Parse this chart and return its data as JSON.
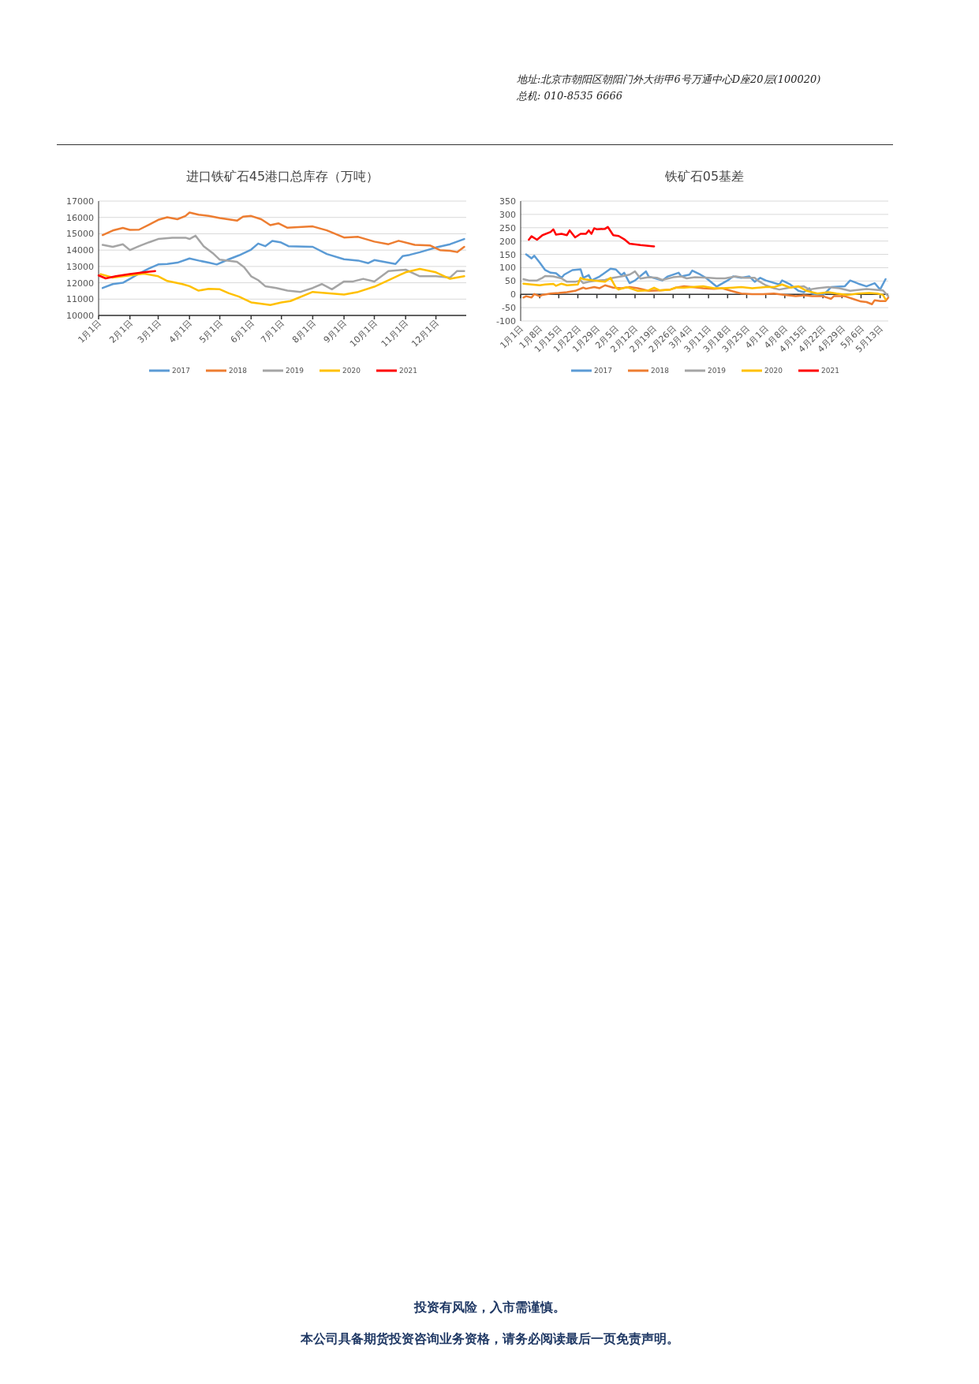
{
  "chart_data": [
    {
      "type": "line",
      "title": "进口铁矿石45港口总库存（万吨）",
      "xlim": [
        "--01-01",
        "--12-31"
      ],
      "xticks": [
        {
          "value": "--01-01",
          "label": "1月1日"
        },
        {
          "value": "--02-01",
          "label": "2月1日"
        },
        {
          "value": "--03-01",
          "label": "3月1日"
        },
        {
          "value": "--04-01",
          "label": "4月1日"
        },
        {
          "value": "--05-01",
          "label": "5月1日"
        },
        {
          "value": "--06-01",
          "label": "6月1日"
        },
        {
          "value": "--07-01",
          "label": "7月1日"
        },
        {
          "value": "--08-01",
          "label": "8月1日"
        },
        {
          "value": "--09-01",
          "label": "9月1日"
        },
        {
          "value": "--10-01",
          "label": "10月1日"
        },
        {
          "value": "--11-01",
          "label": "11月1日"
        },
        {
          "value": "--12-01",
          "label": "12月1日"
        }
      ],
      "ylim": [
        10000,
        17000
      ],
      "yticks": [
        10000,
        11000,
        12000,
        13000,
        14000,
        15000,
        16000,
        17000
      ],
      "grid": "y",
      "legend": "bottom",
      "line_style": "solid",
      "marker": "none",
      "annotations": [
        "地址:北京市朝阳区朝阳门外大街甲6号万通中心D座20层(100020)",
        "总机: 010-8535 6666",
        "投资有风险，入市需谨慎。",
        "本公司具备期货投资咨询业务资格，请务必阅读最后一页免责声明。"
      ],
      "series": [
        {
          "name": "2017",
          "color": "#5b9bd5",
          "x": [
            "--01-05",
            "--01-15",
            "--01-25",
            "--02-01",
            "--02-10",
            "--02-20",
            "--03-01",
            "--03-10",
            "--03-20",
            "--04-01",
            "--04-10",
            "--04-20",
            "--04-28",
            "--05-10",
            "--05-20",
            "--06-01",
            "--06-08",
            "--06-15",
            "--06-22",
            "--06-30",
            "--07-08",
            "--08-01",
            "--08-15",
            "--09-01",
            "--09-15",
            "--09-25",
            "--10-01",
            "--10-22",
            "--10-29",
            "--11-05",
            "--11-15",
            "--12-01",
            "--12-15",
            "--12-29"
          ],
          "values": [
            11680,
            11920,
            12000,
            12240,
            12560,
            12880,
            13120,
            13150,
            13230,
            13490,
            13360,
            13230,
            13120,
            13440,
            13680,
            14030,
            14400,
            14240,
            14560,
            14480,
            14240,
            14200,
            13760,
            13440,
            13360,
            13200,
            13390,
            13150,
            13630,
            13710,
            13870,
            14160,
            14360,
            14680
          ]
        },
        {
          "name": "2018",
          "color": "#ed7d31",
          "x": [
            "--01-05",
            "--01-15",
            "--01-25",
            "--02-01",
            "--02-10",
            "--02-20",
            "--03-01",
            "--03-10",
            "--03-20",
            "--03-28",
            "--04-01",
            "--04-10",
            "--04-20",
            "--05-01",
            "--05-18",
            "--05-24",
            "--06-01",
            "--06-11",
            "--06-20",
            "--06-28",
            "--07-07",
            "--08-01",
            "--08-15",
            "--09-01",
            "--09-15",
            "--10-01",
            "--10-15",
            "--10-25",
            "--11-10",
            "--11-25",
            "--12-05",
            "--12-15",
            "--12-22",
            "--12-29"
          ],
          "values": [
            14920,
            15200,
            15360,
            15240,
            15250,
            15560,
            15850,
            16010,
            15890,
            16090,
            16300,
            16170,
            16090,
            15960,
            15800,
            16050,
            16090,
            15890,
            15530,
            15640,
            15370,
            15450,
            15210,
            14770,
            14810,
            14520,
            14360,
            14570,
            14320,
            14290,
            14000,
            13960,
            13880,
            14200
          ]
        },
        {
          "name": "2019",
          "color": "#a5a5a5",
          "x": [
            "--01-05",
            "--01-15",
            "--01-25",
            "--02-01",
            "--02-10",
            "--02-20",
            "--03-01",
            "--03-15",
            "--03-28",
            "--04-01",
            "--04-07",
            "--04-15",
            "--04-25",
            "--05-01",
            "--05-18",
            "--05-25",
            "--06-01",
            "--06-08",
            "--06-15",
            "--06-26",
            "--07-07",
            "--07-20",
            "--08-01",
            "--08-10",
            "--08-20",
            "--09-01",
            "--09-10",
            "--09-20",
            "--10-01",
            "--10-15",
            "--11-01",
            "--11-15",
            "--12-01",
            "--12-15",
            "--12-22",
            "--12-29"
          ],
          "values": [
            14320,
            14200,
            14360,
            14000,
            14240,
            14480,
            14680,
            14760,
            14760,
            14680,
            14880,
            14240,
            13760,
            13410,
            13280,
            12960,
            12400,
            12160,
            11790,
            11680,
            11520,
            11440,
            11680,
            11920,
            11600,
            12080,
            12080,
            12240,
            12080,
            12720,
            12800,
            12400,
            12400,
            12320,
            12720,
            12720
          ]
        },
        {
          "name": "2020",
          "color": "#ffc000",
          "x": [
            "--01-03",
            "--01-15",
            "--02-01",
            "--02-15",
            "--03-01",
            "--03-10",
            "--03-25",
            "--04-01",
            "--04-10",
            "--04-20",
            "--05-01",
            "--05-10",
            "--05-20",
            "--06-01",
            "--06-10",
            "--06-20",
            "--07-01",
            "--07-10",
            "--08-01",
            "--09-01",
            "--09-15",
            "--10-01",
            "--10-15",
            "--11-01",
            "--11-15",
            "--12-01",
            "--12-15",
            "--12-29"
          ],
          "values": [
            12530,
            12320,
            12450,
            12560,
            12400,
            12110,
            11920,
            11790,
            11520,
            11630,
            11600,
            11360,
            11150,
            10800,
            10720,
            10640,
            10800,
            10880,
            11440,
            11280,
            11440,
            11760,
            12160,
            12640,
            12850,
            12640,
            12240,
            12400
          ]
        },
        {
          "name": "2021",
          "color": "#ff0000",
          "x": [
            "--01-01",
            "--01-08",
            "--01-18",
            "--02-01",
            "--02-15",
            "--02-26"
          ],
          "values": [
            12450,
            12270,
            12400,
            12530,
            12640,
            12720
          ]
        }
      ]
    },
    {
      "type": "line",
      "title": "铁矿石05基差",
      "xlim": [
        "--01-01",
        "--05-16"
      ],
      "xticks": [
        {
          "value": "--01-01",
          "label": "1月1日"
        },
        {
          "value": "--01-08",
          "label": "1月8日"
        },
        {
          "value": "--01-15",
          "label": "1月15日"
        },
        {
          "value": "--01-22",
          "label": "1月22日"
        },
        {
          "value": "--01-29",
          "label": "1月29日"
        },
        {
          "value": "--02-05",
          "label": "2月5日"
        },
        {
          "value": "--02-12",
          "label": "2月12日"
        },
        {
          "value": "--02-19",
          "label": "2月19日"
        },
        {
          "value": "--02-26",
          "label": "2月26日"
        },
        {
          "value": "--03-04",
          "label": "3月4日"
        },
        {
          "value": "--03-11",
          "label": "3月11日"
        },
        {
          "value": "--03-18",
          "label": "3月18日"
        },
        {
          "value": "--03-25",
          "label": "3月25日"
        },
        {
          "value": "--04-01",
          "label": "4月1日"
        },
        {
          "value": "--04-08",
          "label": "4月8日"
        },
        {
          "value": "--04-15",
          "label": "4月15日"
        },
        {
          "value": "--04-22",
          "label": "4月22日"
        },
        {
          "value": "--04-29",
          "label": "4月29日"
        },
        {
          "value": "--05-06",
          "label": "5月6日"
        },
        {
          "value": "--05-13",
          "label": "5月13日"
        }
      ],
      "ylim": [
        -100,
        350
      ],
      "yticks": [
        -100,
        -50,
        0,
        50,
        100,
        150,
        200,
        250,
        300,
        350
      ],
      "grid": "y",
      "legend": "bottom",
      "line_style": "solid",
      "marker": "none",
      "series": [
        {
          "name": "2017",
          "color": "#5b9bd5",
          "x": [
            "--01-03",
            "--01-05",
            "--01-06",
            "--01-08",
            "--01-10",
            "--01-12",
            "--01-14",
            "--01-16",
            "--01-17",
            "--01-20",
            "--01-23",
            "--01-24",
            "--01-26",
            "--01-27",
            "--01-30",
            "--02-03",
            "--02-05",
            "--02-07",
            "--02-08",
            "--02-10",
            "--02-12",
            "--02-16",
            "--02-17",
            "--02-22",
            "--02-24",
            "--02-28",
            "--03-01",
            "--03-04",
            "--03-05",
            "--03-08",
            "--03-10",
            "--03-14",
            "--03-18",
            "--03-20",
            "--03-23",
            "--03-26",
            "--03-28",
            "--03-30",
            "--04-01",
            "--04-06",
            "--04-07",
            "--04-10",
            "--04-13",
            "--04-15",
            "--04-17",
            "--04-18",
            "--04-22",
            "--04-25",
            "--04-30",
            "--05-02",
            "--05-05",
            "--05-08",
            "--05-11",
            "--05-13",
            "--05-15"
          ],
          "values": [
            150,
            135,
            145,
            119,
            91,
            81,
            79,
            62,
            74,
            91,
            94,
            62,
            72,
            52,
            67,
            96,
            93,
            72,
            81,
            42,
            52,
            86,
            67,
            52,
            67,
            81,
            67,
            74,
            89,
            74,
            62,
            29,
            52,
            67,
            62,
            67,
            47,
            62,
            52,
            37,
            52,
            37,
            13,
            8,
            23,
            3,
            -4,
            27,
            30,
            52,
            40,
            30,
            42,
            18,
            57
          ]
        },
        {
          "name": "2018",
          "color": "#ed7d31",
          "x": [
            "--01-02",
            "--01-03",
            "--01-05",
            "--01-06",
            "--01-08",
            "--01-09",
            "--01-12",
            "--01-15",
            "--01-18",
            "--01-21",
            "--01-24",
            "--01-25",
            "--01-28",
            "--01-30",
            "--02-01",
            "--02-04",
            "--02-07",
            "--02-10",
            "--02-13",
            "--02-17",
            "--02-21",
            "--02-25",
            "--02-27",
            "--03-02",
            "--03-05",
            "--03-09",
            "--03-13",
            "--03-16",
            "--03-20",
            "--03-23",
            "--03-27",
            "--03-31",
            "--04-04",
            "--04-08",
            "--04-12",
            "--04-15",
            "--04-18",
            "--04-22",
            "--04-25",
            "--04-26",
            "--04-30",
            "--05-03",
            "--05-06",
            "--05-08",
            "--05-10",
            "--05-11",
            "--05-13",
            "--05-15",
            "--05-16"
          ],
          "values": [
            -12,
            -7,
            -12,
            1,
            -7,
            -2,
            3,
            5,
            8,
            13,
            25,
            21,
            27,
            23,
            34,
            25,
            23,
            27,
            23,
            13,
            15,
            18,
            25,
            30,
            27,
            23,
            21,
            23,
            11,
            3,
            1,
            1,
            3,
            -2,
            -7,
            -4,
            -7,
            -7,
            -17,
            -7,
            -7,
            -17,
            -27,
            -29,
            -37,
            -22,
            -25,
            -25,
            -12
          ]
        },
        {
          "name": "2019",
          "color": "#a5a5a5",
          "x": [
            "--01-02",
            "--01-04",
            "--01-07",
            "--01-09",
            "--01-10",
            "--01-13",
            "--01-16",
            "--01-18",
            "--01-21",
            "--01-23",
            "--01-24",
            "--01-26",
            "--01-29",
            "--02-01",
            "--02-04",
            "--02-07",
            "--02-10",
            "--02-12",
            "--02-14",
            "--02-17",
            "--02-20",
            "--02-22",
            "--02-26",
            "--03-01",
            "--03-03",
            "--03-06",
            "--03-11",
            "--03-14",
            "--03-17",
            "--03-21",
            "--03-24",
            "--03-28",
            "--03-29",
            "--04-01",
            "--04-04",
            "--04-06",
            "--04-11",
            "--04-15",
            "--04-17",
            "--04-20",
            "--04-24",
            "--04-28",
            "--05-02",
            "--05-08",
            "--05-14",
            "--05-16"
          ],
          "values": [
            57,
            52,
            52,
            62,
            69,
            67,
            60,
            47,
            47,
            52,
            42,
            47,
            52,
            54,
            62,
            67,
            74,
            86,
            59,
            64,
            62,
            54,
            64,
            67,
            60,
            64,
            62,
            60,
            60,
            67,
            62,
            62,
            52,
            34,
            23,
            18,
            27,
            30,
            18,
            23,
            27,
            23,
            13,
            20,
            15,
            -7
          ]
        },
        {
          "name": "2020",
          "color": "#ffc000",
          "x": [
            "--01-02",
            "--01-05",
            "--01-08",
            "--01-10",
            "--01-13",
            "--01-14",
            "--01-16",
            "--01-18",
            "--01-22",
            "--01-23",
            "--01-24",
            "--01-28",
            "--02-01",
            "--02-03",
            "--02-05",
            "--02-06",
            "--02-09",
            "--02-13",
            "--02-17",
            "--02-19",
            "--02-21",
            "--02-25",
            "--02-27",
            "--03-02",
            "--03-05",
            "--03-09",
            "--03-13",
            "--03-16",
            "--03-20",
            "--03-23",
            "--03-27",
            "--04-01",
            "--04-04",
            "--04-07",
            "--04-10",
            "--04-13",
            "--04-16",
            "--04-20",
            "--04-24",
            "--04-27",
            "--05-01",
            "--05-05",
            "--05-09",
            "--05-12",
            "--05-14",
            "--05-15"
          ],
          "values": [
            40,
            37,
            34,
            37,
            39,
            32,
            40,
            34,
            37,
            62,
            57,
            52,
            47,
            62,
            25,
            18,
            27,
            13,
            15,
            25,
            15,
            18,
            25,
            25,
            27,
            30,
            23,
            23,
            25,
            27,
            23,
            27,
            27,
            37,
            25,
            30,
            13,
            3,
            8,
            3,
            -2,
            3,
            5,
            3,
            -2,
            -19
          ]
        },
        {
          "name": "2021",
          "color": "#ff0000",
          "x": [
            "--01-04",
            "--01-05",
            "--01-07",
            "--01-09",
            "--01-12",
            "--01-13",
            "--01-14",
            "--01-16",
            "--01-18",
            "--01-19",
            "--01-21",
            "--01-23",
            "--01-25",
            "--01-26",
            "--01-27",
            "--01-28",
            "--01-29",
            "--02-01",
            "--02-02",
            "--02-04",
            "--02-06",
            "--02-08",
            "--02-10",
            "--02-14",
            "--02-19"
          ],
          "values": [
            205,
            218,
            205,
            222,
            234,
            244,
            224,
            227,
            222,
            240,
            214,
            227,
            227,
            240,
            227,
            248,
            244,
            246,
            253,
            222,
            219,
            207,
            190,
            185,
            180
          ]
        }
      ]
    }
  ]
}
